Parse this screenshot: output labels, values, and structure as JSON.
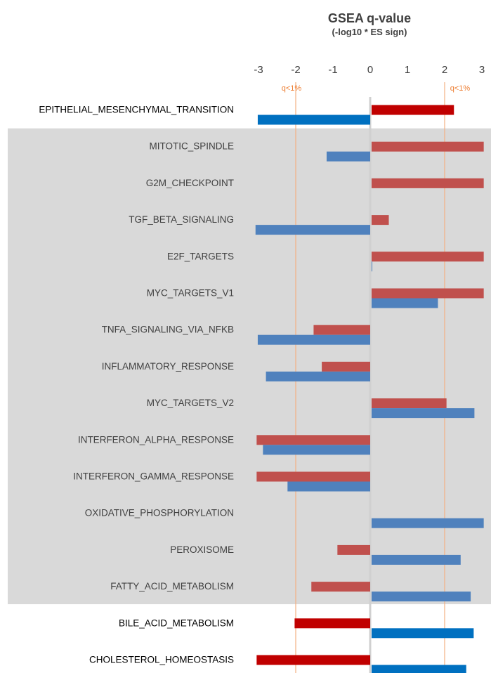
{
  "chart_data": {
    "type": "bar",
    "orientation": "horizontal",
    "title": "GSEA q-value",
    "subtitle": "(-log10 * ES sign)",
    "xlim": [
      -3,
      3
    ],
    "x_ticks": [
      "-3",
      "-2",
      "-1",
      "0",
      "1",
      "2",
      "3"
    ],
    "threshold_lines": [
      -2,
      2
    ],
    "threshold_label": "q<1%",
    "colors": {
      "red_bold": "#C00000",
      "blue_bold": "#0070C0",
      "red_muted": "#C0504D",
      "blue_muted": "#4F81BD",
      "shaded_band": "#D9D9D9",
      "threshold": "#F4B183",
      "threshold_text": "#ED7D31"
    },
    "categories": [
      "EPITHELIAL_MESENCHYMAL_TRANSITION",
      "MITOTIC_SPINDLE",
      "G2M_CHECKPOINT",
      "TGF_BETA_SIGNALING",
      "E2F_TARGETS",
      "MYC_TARGETS_V1",
      "TNFA_SIGNALING_VIA_NFKB",
      "INFLAMMATORY_RESPONSE",
      "MYC_TARGETS_V2",
      "INTERFERON_ALPHA_RESPONSE",
      "INTERFERON_GAMMA_RESPONSE",
      "OXIDATIVE_PHOSPHORYLATION",
      "PEROXISOME",
      "FATTY_ACID_METABOLISM",
      "BILE_ACID_METABOLISM",
      "CHOLESTEROL_HOMEOSTASIS"
    ],
    "shaded_categories": [
      "MITOTIC_SPINDLE",
      "G2M_CHECKPOINT",
      "TGF_BETA_SIGNALING",
      "E2F_TARGETS",
      "MYC_TARGETS_V1",
      "TNFA_SIGNALING_VIA_NFKB",
      "INFLAMMATORY_RESPONSE",
      "MYC_TARGETS_V2",
      "INTERFERON_ALPHA_RESPONSE",
      "INTERFERON_GAMMA_RESPONSE",
      "OXIDATIVE_PHOSPHORYLATION",
      "PEROXISOME",
      "FATTY_ACID_METABOLISM"
    ],
    "series": [
      {
        "color": "red",
        "values": [
          2.25,
          3.05,
          3.05,
          0.5,
          3.05,
          3.05,
          -1.52,
          -1.3,
          2.05,
          -3.05,
          -3.05,
          0,
          -0.88,
          -1.58,
          -2.03,
          -3.05
        ]
      },
      {
        "color": "blue",
        "values": [
          -3.02,
          -1.17,
          0,
          -3.08,
          0.05,
          1.82,
          -3.02,
          -2.8,
          2.8,
          -2.88,
          -2.22,
          3.05,
          2.43,
          2.7,
          2.78,
          2.58
        ]
      }
    ]
  }
}
